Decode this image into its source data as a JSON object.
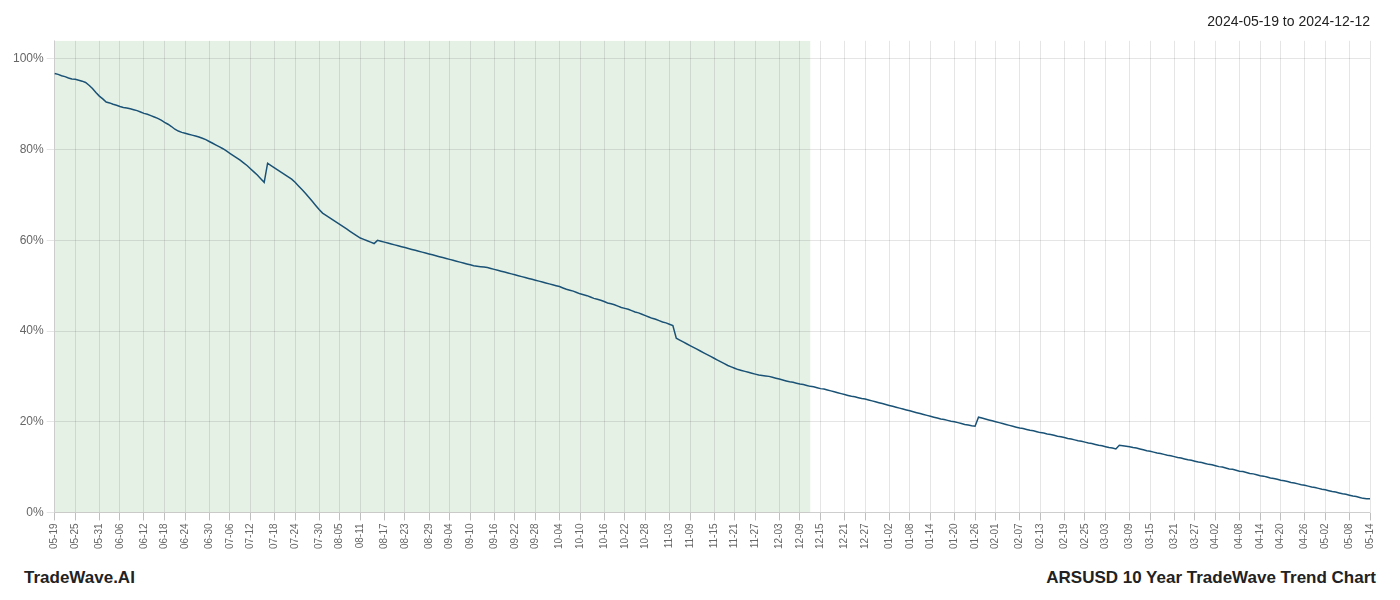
{
  "chart_data": {
    "type": "line",
    "title": "2024-05-19 to 2024-12-12",
    "annotations": [
      "TradeWave.AI",
      "ARSUSD 10 Year TradeWave Trend Chart"
    ],
    "color": "#1a5276",
    "grid": true,
    "ylim": [
      0,
      1.04
    ],
    "yticks": [
      {
        "value": 0,
        "label": "0%"
      },
      {
        "value": 0.2,
        "label": "20%"
      },
      {
        "value": 0.4,
        "label": "40%"
      },
      {
        "value": 0.6,
        "label": "60%"
      },
      {
        "value": 0.8,
        "label": "80%"
      },
      {
        "value": 1.0,
        "label": "100%"
      }
    ],
    "shaded_span": {
      "start": 0,
      "end": 220,
      "color": "#d5e8d4"
    },
    "categories": [
      "05-19",
      null,
      null,
      null,
      null,
      null,
      "05-25",
      null,
      null,
      null,
      null,
      null,
      null,
      "05-31",
      null,
      null,
      null,
      null,
      null,
      "06-06",
      null,
      null,
      null,
      null,
      null,
      null,
      "06-12",
      null,
      null,
      null,
      null,
      null,
      "06-18",
      null,
      null,
      null,
      null,
      null,
      "06-24",
      null,
      null,
      null,
      null,
      null,
      null,
      "06-30",
      null,
      null,
      null,
      null,
      null,
      "07-06",
      null,
      null,
      null,
      null,
      null,
      "07-12",
      null,
      null,
      null,
      null,
      null,
      null,
      "07-18",
      null,
      null,
      null,
      null,
      null,
      "07-24",
      null,
      null,
      null,
      null,
      null,
      null,
      "07-30",
      null,
      null,
      null,
      null,
      null,
      "08-05",
      null,
      null,
      null,
      null,
      null,
      "08-11",
      null,
      null,
      null,
      null,
      null,
      null,
      "08-17",
      null,
      null,
      null,
      null,
      null,
      "08-23",
      null,
      null,
      null,
      null,
      null,
      null,
      "08-29",
      null,
      null,
      null,
      null,
      null,
      "09-04",
      null,
      null,
      null,
      null,
      null,
      "09-10",
      null,
      null,
      null,
      null,
      null,
      null,
      "09-16",
      null,
      null,
      null,
      null,
      null,
      "09-22",
      null,
      null,
      null,
      null,
      null,
      "09-28",
      null,
      null,
      null,
      null,
      null,
      null,
      "10-04",
      null,
      null,
      null,
      null,
      null,
      "10-10",
      null,
      null,
      null,
      null,
      null,
      null,
      "10-16",
      null,
      null,
      null,
      null,
      null,
      "10-22",
      null,
      null,
      null,
      null,
      null,
      "10-28",
      null,
      null,
      null,
      null,
      null,
      null,
      "11-03",
      null,
      null,
      null,
      null,
      null,
      "11-09",
      null,
      null,
      null,
      null,
      null,
      null,
      "11-15",
      null,
      null,
      null,
      null,
      null,
      "11-21",
      null,
      null,
      null,
      null,
      null,
      "11-27",
      null,
      null,
      null,
      null,
      null,
      null,
      "12-03",
      null,
      null,
      null,
      null,
      null,
      "12-09",
      null,
      null,
      null,
      null,
      null,
      "12-15",
      null,
      null,
      null,
      null,
      null,
      null,
      "12-21",
      null,
      null,
      null,
      null,
      null,
      "12-27",
      null,
      null,
      null,
      null,
      null,
      null,
      "01-02",
      null,
      null,
      null,
      null,
      null,
      "01-08",
      null,
      null,
      null,
      null,
      null,
      "01-14",
      null,
      null,
      null,
      null,
      null,
      null,
      "01-20",
      null,
      null,
      null,
      null,
      null,
      "01-26",
      null,
      null,
      null,
      null,
      null,
      "02-01",
      null,
      null,
      null,
      null,
      null,
      null,
      "02-07",
      null,
      null,
      null,
      null,
      null,
      "02-13",
      null,
      null,
      null,
      null,
      null,
      null,
      "02-19",
      null,
      null,
      null,
      null,
      null,
      "02-25",
      null,
      null,
      null,
      null,
      null,
      "03-03",
      null,
      null,
      null,
      null,
      null,
      null,
      "03-09",
      null,
      null,
      null,
      null,
      null,
      "03-15",
      null,
      null,
      null,
      null,
      null,
      null,
      "03-21",
      null,
      null,
      null,
      null,
      null,
      "03-27",
      null,
      null,
      null,
      null,
      null,
      "04-02",
      null,
      null,
      null,
      null,
      null,
      null,
      "04-08",
      null,
      null,
      null,
      null,
      null,
      "04-14",
      null,
      null,
      null,
      null,
      null,
      "04-20",
      null,
      null,
      null,
      null,
      null,
      null,
      "04-26",
      null,
      null,
      null,
      null,
      null,
      "05-02",
      null,
      null,
      null,
      null,
      null,
      null,
      "05-08",
      null,
      null,
      null,
      null,
      null,
      "05-14"
    ],
    "values": [
      0.968,
      0.966,
      0.963,
      0.961,
      0.958,
      0.956,
      0.955,
      0.953,
      0.951,
      0.948,
      0.942,
      0.935,
      0.926,
      0.918,
      0.912,
      0.905,
      0.903,
      0.9,
      0.898,
      0.895,
      0.893,
      0.892,
      0.89,
      0.888,
      0.886,
      0.883,
      0.88,
      0.878,
      0.875,
      0.872,
      0.869,
      0.865,
      0.86,
      0.856,
      0.851,
      0.845,
      0.841,
      0.838,
      0.836,
      0.834,
      0.832,
      0.83,
      0.828,
      0.825,
      0.822,
      0.818,
      0.814,
      0.81,
      0.806,
      0.802,
      0.797,
      0.792,
      0.787,
      0.782,
      0.777,
      0.771,
      0.765,
      0.758,
      0.751,
      0.744,
      0.736,
      0.728,
      0.77,
      0.765,
      0.76,
      0.755,
      0.75,
      0.745,
      0.74,
      0.735,
      0.728,
      0.72,
      0.712,
      0.704,
      0.695,
      0.686,
      0.677,
      0.668,
      0.66,
      0.655,
      0.65,
      0.645,
      0.64,
      0.635,
      0.63,
      0.625,
      0.62,
      0.615,
      0.61,
      0.605,
      0.602,
      0.599,
      0.596,
      0.593,
      0.6,
      0.598,
      0.596,
      0.594,
      0.592,
      0.59,
      0.588,
      0.586,
      0.584,
      0.582,
      0.58,
      0.578,
      0.576,
      0.574,
      0.572,
      0.57,
      0.568,
      0.566,
      0.564,
      0.562,
      0.56,
      0.558,
      0.556,
      0.554,
      0.552,
      0.55,
      0.548,
      0.546,
      0.544,
      0.543,
      0.542,
      0.541,
      0.54,
      0.538,
      0.536,
      0.534,
      0.532,
      0.53,
      0.528,
      0.526,
      0.524,
      0.522,
      0.52,
      0.518,
      0.516,
      0.514,
      0.512,
      0.51,
      0.508,
      0.506,
      0.504,
      0.502,
      0.5,
      0.498,
      0.495,
      0.492,
      0.49,
      0.488,
      0.485,
      0.482,
      0.48,
      0.478,
      0.475,
      0.472,
      0.47,
      0.468,
      0.465,
      0.462,
      0.46,
      0.458,
      0.455,
      0.452,
      0.45,
      0.448,
      0.445,
      0.442,
      0.44,
      0.437,
      0.434,
      0.431,
      0.428,
      0.426,
      0.423,
      0.42,
      0.418,
      0.415,
      0.412,
      0.384,
      0.38,
      0.376,
      0.372,
      0.368,
      0.364,
      0.36,
      0.356,
      0.352,
      0.348,
      0.344,
      0.34,
      0.336,
      0.332,
      0.328,
      0.324,
      0.321,
      0.318,
      0.315,
      0.313,
      0.311,
      0.309,
      0.307,
      0.305,
      0.303,
      0.302,
      0.301,
      0.3,
      0.298,
      0.296,
      0.294,
      0.292,
      0.29,
      0.288,
      0.287,
      0.285,
      0.283,
      0.282,
      0.28,
      0.278,
      0.277,
      0.275,
      0.273,
      0.272,
      0.27,
      0.268,
      0.266,
      0.264,
      0.262,
      0.26,
      0.258,
      0.256,
      0.255,
      0.253,
      0.251,
      0.25,
      0.248,
      0.246,
      0.244,
      0.242,
      0.24,
      0.238,
      0.236,
      0.234,
      0.232,
      0.23,
      0.228,
      0.226,
      0.224,
      0.222,
      0.22,
      0.218,
      0.216,
      0.214,
      0.212,
      0.21,
      0.208,
      0.206,
      0.205,
      0.203,
      0.201,
      0.2,
      0.198,
      0.196,
      0.194,
      0.193,
      0.191,
      0.19,
      0.21,
      0.208,
      0.206,
      0.204,
      0.202,
      0.2,
      0.198,
      0.196,
      0.194,
      0.192,
      0.19,
      0.188,
      0.186,
      0.185,
      0.183,
      0.181,
      0.18,
      0.178,
      0.176,
      0.175,
      0.173,
      0.172,
      0.17,
      0.168,
      0.167,
      0.165,
      0.163,
      0.162,
      0.16,
      0.158,
      0.157,
      0.155,
      0.153,
      0.152,
      0.15,
      0.148,
      0.147,
      0.145,
      0.143,
      0.142,
      0.14,
      0.148,
      0.147,
      0.146,
      0.145,
      0.143,
      0.142,
      0.14,
      0.138,
      0.136,
      0.135,
      0.133,
      0.131,
      0.13,
      0.128,
      0.126,
      0.125,
      0.123,
      0.121,
      0.12,
      0.118,
      0.116,
      0.115,
      0.113,
      0.111,
      0.11,
      0.108,
      0.106,
      0.105,
      0.103,
      0.101,
      0.1,
      0.098,
      0.096,
      0.095,
      0.093,
      0.091,
      0.09,
      0.088,
      0.086,
      0.085,
      0.083,
      0.081,
      0.08,
      0.078,
      0.076,
      0.075,
      0.073,
      0.071,
      0.07,
      0.068,
      0.066,
      0.065,
      0.063,
      0.061,
      0.06,
      0.058,
      0.056,
      0.055,
      0.053,
      0.051,
      0.05,
      0.048,
      0.046,
      0.045,
      0.043,
      0.041,
      0.04,
      0.038,
      0.036,
      0.035,
      0.033,
      0.031,
      0.03,
      0.03
    ]
  }
}
